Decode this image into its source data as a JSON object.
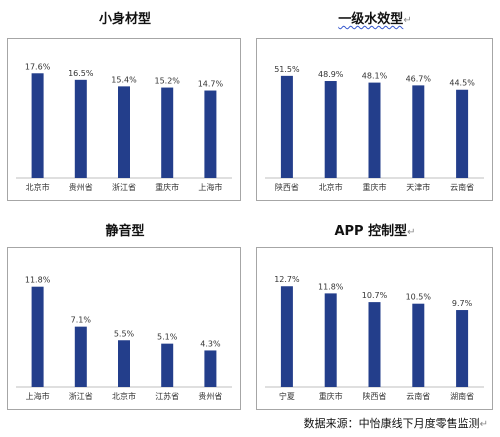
{
  "chart_data": [
    {
      "type": "bar",
      "title": "小身材型",
      "categories": [
        "北京市",
        "贵州省",
        "浙江省",
        "重庆市",
        "上海市"
      ],
      "values": [
        17.6,
        16.5,
        15.4,
        15.2,
        14.7
      ],
      "value_labels": [
        "17.6%",
        "16.5%",
        "15.4%",
        "15.2%",
        "14.7%"
      ],
      "ylim": [
        0,
        20
      ],
      "bar_color": "#233e8b",
      "grid": false
    },
    {
      "type": "bar",
      "title": "一级水效型",
      "categories": [
        "陕西省",
        "北京市",
        "重庆市",
        "天津市",
        "云南省"
      ],
      "values": [
        51.5,
        48.9,
        48.1,
        46.7,
        44.5
      ],
      "value_labels": [
        "51.5%",
        "48.9%",
        "48.1%",
        "46.7%",
        "44.5%"
      ],
      "ylim": [
        0,
        60
      ],
      "bar_color": "#233e8b",
      "grid": false
    },
    {
      "type": "bar",
      "title": "静音型",
      "categories": [
        "上海市",
        "浙江省",
        "北京市",
        "江苏省",
        "贵州省"
      ],
      "values": [
        11.8,
        7.1,
        5.5,
        5.1,
        4.3
      ],
      "value_labels": [
        "11.8%",
        "7.1%",
        "5.5%",
        "5.1%",
        "4.3%"
      ],
      "ylim": [
        0,
        14
      ],
      "bar_color": "#233e8b",
      "grid": false
    },
    {
      "type": "bar",
      "title": "APP 控制型",
      "categories": [
        "宁夏",
        "重庆市",
        "陕西省",
        "云南省",
        "湖南省"
      ],
      "values": [
        12.7,
        11.8,
        10.7,
        10.5,
        9.7
      ],
      "value_labels": [
        "12.7%",
        "11.8%",
        "10.7%",
        "10.5%",
        "9.7%"
      ],
      "ylim": [
        0,
        15
      ],
      "bar_color": "#233e8b",
      "grid": false
    }
  ],
  "paragraph_mark": "↵",
  "source_text": "数据来源：中怡康线下月度零售监测"
}
